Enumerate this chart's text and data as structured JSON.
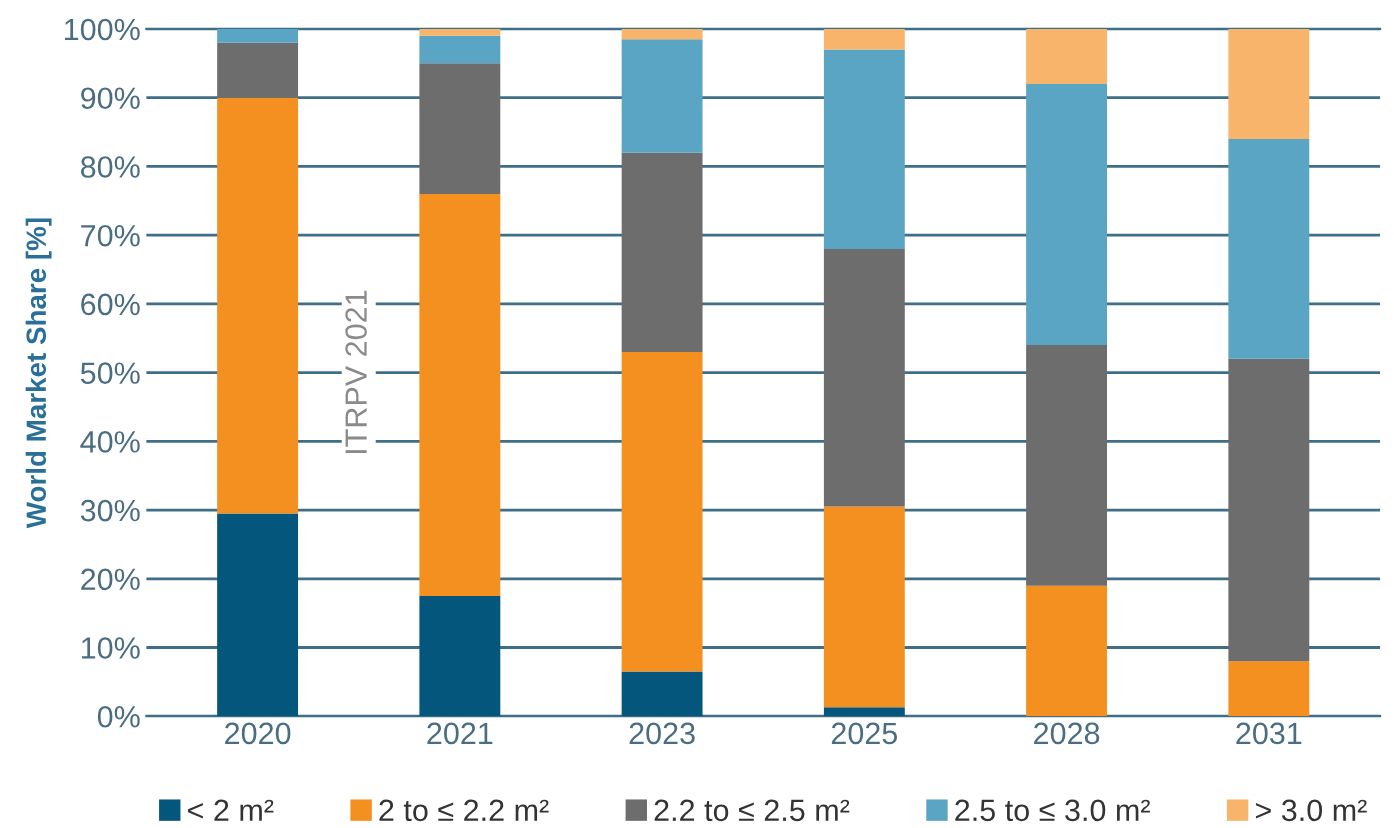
{
  "chart_data": {
    "type": "bar",
    "stacked": true,
    "ylabel": "World Market Share [%]",
    "categories": [
      "2020",
      "2021",
      "2023",
      "2025",
      "2028",
      "2031"
    ],
    "series": [
      {
        "name": "< 2 m²",
        "color": "#04567d",
        "values": [
          29.5,
          17.5,
          6.5,
          1.3,
          0,
          0
        ]
      },
      {
        "name": "2 to ≤ 2.2 m²",
        "color": "#f39020",
        "values": [
          60.5,
          58.5,
          46.5,
          29.2,
          19,
          8
        ]
      },
      {
        "name": "2.2 to ≤ 2.5 m²",
        "color": "#6d6d6d",
        "values": [
          8,
          19,
          29,
          37.5,
          35,
          44
        ]
      },
      {
        "name": "2.5 to ≤ 3.0 m²",
        "color": "#5aa5c4",
        "values": [
          2,
          4,
          16.5,
          29,
          38,
          32
        ]
      },
      {
        "name": "> 3.0 m²",
        "color": "#f8b46b",
        "values": [
          0,
          1,
          1.5,
          3,
          8,
          16
        ]
      }
    ],
    "ylim": [
      0,
      100
    ],
    "yticks": [
      {
        "value": 0,
        "label": "0%"
      },
      {
        "value": 10,
        "label": "10%"
      },
      {
        "value": 20,
        "label": "20%"
      },
      {
        "value": 30,
        "label": "30%"
      },
      {
        "value": 40,
        "label": "40%"
      },
      {
        "value": 50,
        "label": "50%"
      },
      {
        "value": 60,
        "label": "60%"
      },
      {
        "value": 70,
        "label": "70%"
      },
      {
        "value": 80,
        "label": "80%"
      },
      {
        "value": 90,
        "label": "90%"
      },
      {
        "value": 100,
        "label": "100%"
      }
    ],
    "grid": "y",
    "legend": "bottom",
    "annotations": [
      "ITRPV 2021"
    ]
  }
}
